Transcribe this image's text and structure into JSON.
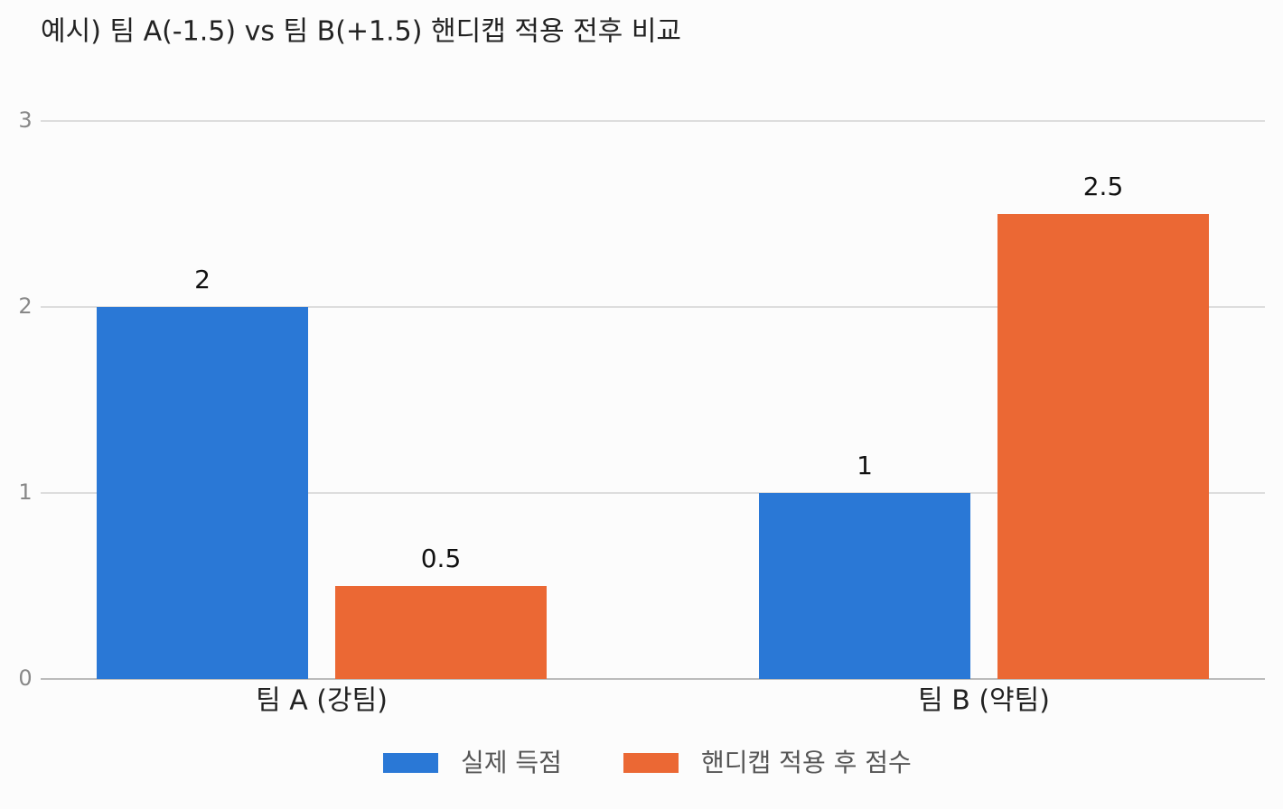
{
  "chart_data": {
    "type": "bar",
    "title": "예시) 팀 A(-1.5) vs 팀 B(+1.5) 핸디캡 적용 전후 비교",
    "categories": [
      "팀 A (강팀)",
      "팀 B (약팀)"
    ],
    "series": [
      {
        "name": "실제 득점",
        "color": "#2a78d6",
        "values": [
          2,
          1
        ]
      },
      {
        "name": "핸디캡 적용 후 점수",
        "color": "#eb6834",
        "values": [
          0.5,
          2.5
        ]
      }
    ],
    "ylim": [
      0,
      3
    ],
    "yticks": [
      0,
      1,
      2,
      3
    ],
    "grid": true,
    "legend": "bottom"
  }
}
